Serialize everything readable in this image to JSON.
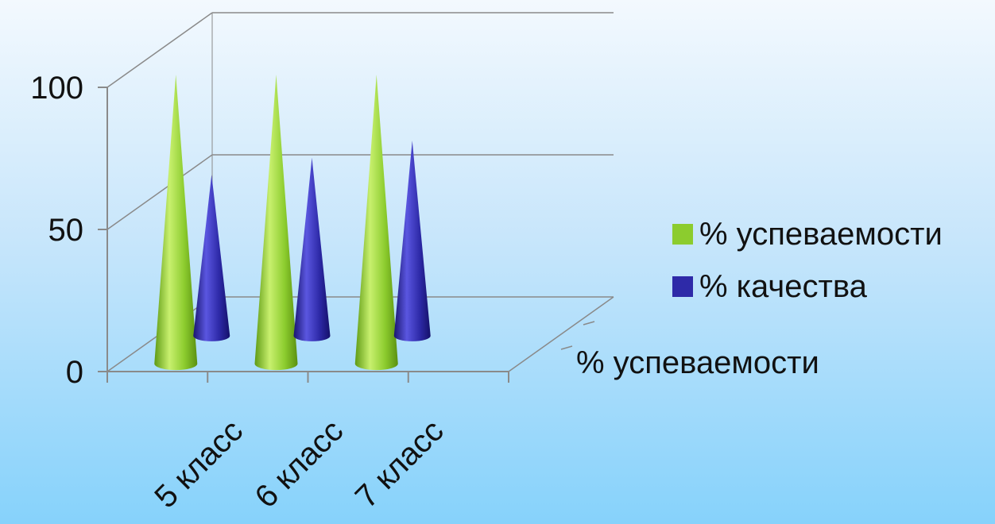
{
  "chart_data": {
    "type": "bar",
    "subtype": "3d-cone",
    "categories": [
      "5 класс",
      "6 класс",
      "7 класс"
    ],
    "series": [
      {
        "name": "% успеваемости",
        "values": [
          100,
          100,
          100
        ],
        "color": "#8ccc2e"
      },
      {
        "name": "% качества",
        "values": [
          55,
          61,
          67
        ],
        "color": "#2e2aa8"
      }
    ],
    "depth_axis_label": "% успеваемости",
    "ylim": [
      0,
      100
    ],
    "yticks": [
      "0",
      "50",
      "100"
    ],
    "grid": true,
    "legend_position": "right"
  }
}
